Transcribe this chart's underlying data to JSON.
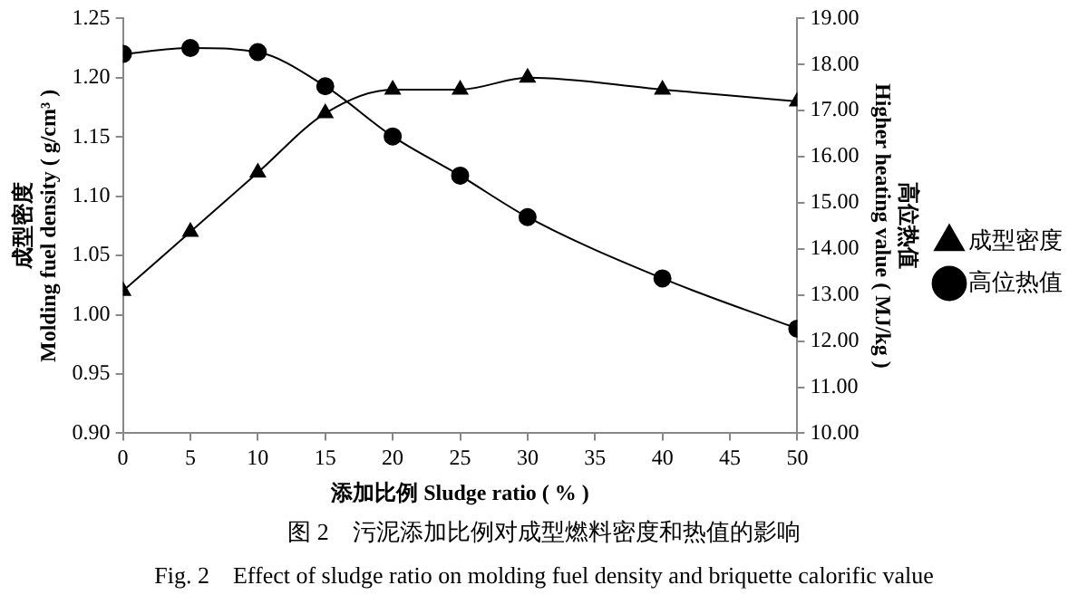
{
  "chart_data": {
    "type": "line",
    "xlabel": "添加比例 Sludge ratio ( % )",
    "ylabel": "成型密度\nMolding fuel density ( g/cm³ )",
    "y2label": "高位热值\nHigher heating value ( MJ/kg )",
    "x": [
      0,
      5,
      10,
      15,
      20,
      25,
      30,
      40,
      50
    ],
    "series": [
      {
        "name": "成型密度",
        "color": "#000000",
        "marker": "triangle",
        "values": [
          1.02,
          1.07,
          1.12,
          1.17,
          1.19,
          1.19,
          1.2,
          1.19,
          1.18
        ]
      },
      {
        "name": "高位热值",
        "color": "#000000",
        "marker": "circle",
        "axis": "y2",
        "values": [
          18.23,
          18.36,
          18.27,
          17.53,
          16.44,
          15.59,
          14.69,
          13.36,
          12.27
        ]
      }
    ],
    "xlim": [
      0,
      50
    ],
    "xticks": [
      0,
      5,
      10,
      15,
      20,
      25,
      30,
      35,
      40,
      45,
      50
    ],
    "ylim": [
      0.9,
      1.25
    ],
    "yticks": [
      {
        "value": 0.9,
        "label": "0.90"
      },
      {
        "value": 0.95,
        "label": "0.95"
      },
      {
        "value": 1.0,
        "label": "1.00"
      },
      {
        "value": 1.05,
        "label": "1.05"
      },
      {
        "value": 1.1,
        "label": "1.10"
      },
      {
        "value": 1.15,
        "label": "1.15"
      },
      {
        "value": 1.2,
        "label": "1.20"
      },
      {
        "value": 1.25,
        "label": "1.25"
      }
    ],
    "y2lim": [
      10,
      19
    ],
    "y2ticks": [
      {
        "value": 10,
        "label": "10.00"
      },
      {
        "value": 11,
        "label": "11.00"
      },
      {
        "value": 12,
        "label": "12.00"
      },
      {
        "value": 13,
        "label": "13.00"
      },
      {
        "value": 14,
        "label": "14.00"
      },
      {
        "value": 15,
        "label": "15.00"
      },
      {
        "value": 16,
        "label": "16.00"
      },
      {
        "value": 17,
        "label": "17.00"
      },
      {
        "value": 18,
        "label": "18.00"
      },
      {
        "value": 19,
        "label": "19.00"
      }
    ],
    "grid": false,
    "legend": "right",
    "annotations": [
      "图 2　污泥添加比例对成型燃料密度和热值的影响",
      "Fig. 2　Effect of sludge ratio on molding fuel density and briquette calorific value"
    ]
  }
}
